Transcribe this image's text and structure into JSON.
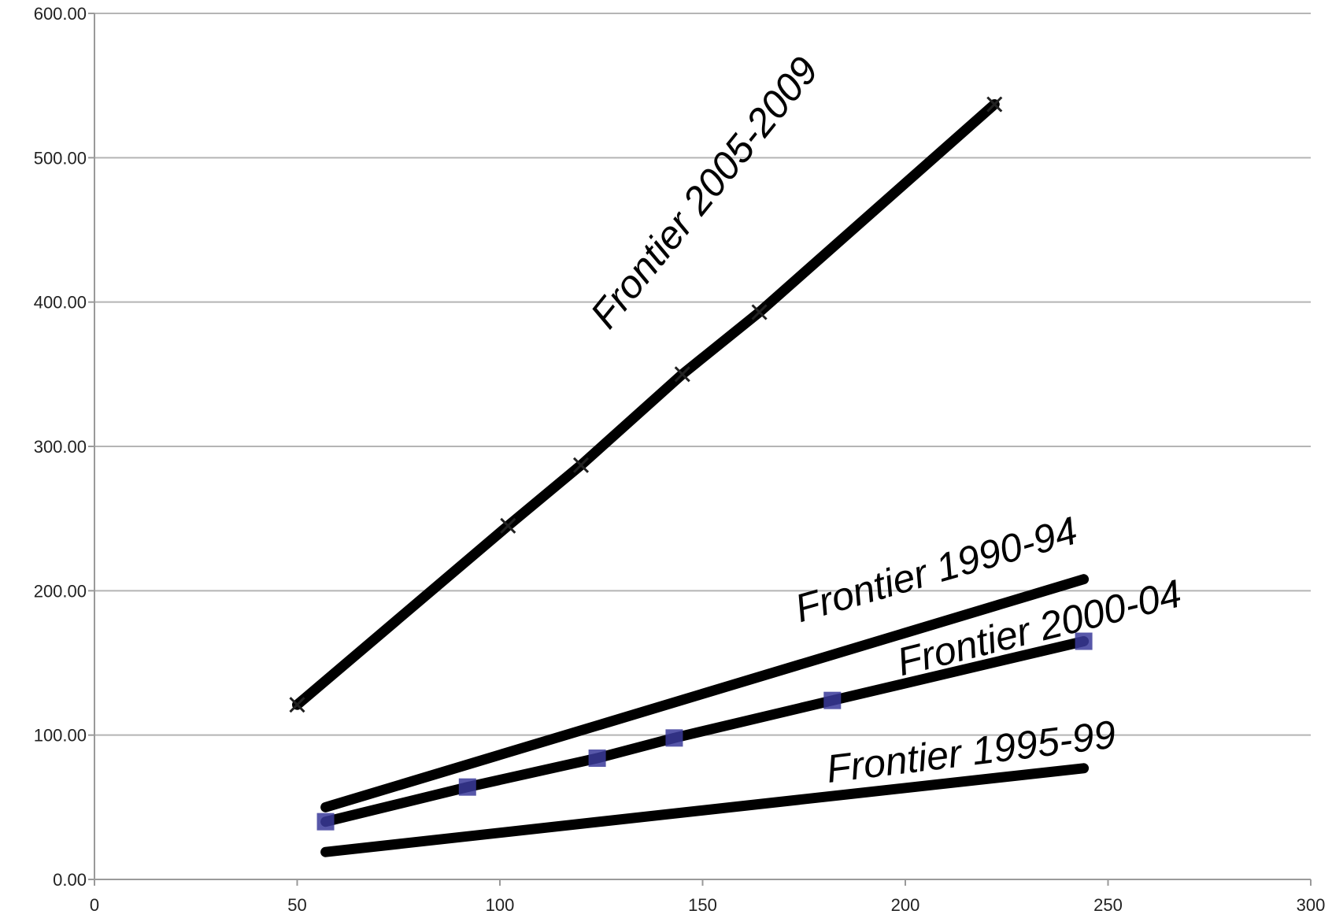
{
  "chart_data": {
    "type": "line",
    "title": "",
    "xlabel": "",
    "ylabel": "",
    "xlim": [
      0,
      300
    ],
    "ylim": [
      0,
      600
    ],
    "x_ticks": [
      0,
      50,
      100,
      150,
      200,
      250,
      300
    ],
    "y_ticks": [
      0,
      100,
      200,
      300,
      400,
      500,
      600
    ],
    "x_tick_labels": [
      "0",
      "50",
      "100",
      "150",
      "200",
      "250",
      "300"
    ],
    "y_tick_labels": [
      "0.00",
      "100.00",
      "200.00",
      "300.00",
      "400.00",
      "500.00",
      "600.00"
    ],
    "grid": "horizontal",
    "colors": {
      "line": "#000000",
      "grid": "#b5b5b5",
      "axis": "#9a9a9a",
      "marker_square": "#3a3a9a"
    },
    "series": [
      {
        "name": "Frontier 2005-2009",
        "marker": "x",
        "points": [
          [
            50,
            121
          ],
          [
            102,
            245
          ],
          [
            120,
            287
          ],
          [
            145,
            350
          ],
          [
            164,
            393
          ],
          [
            222,
            537
          ]
        ]
      },
      {
        "name": "Frontier 1990-94",
        "marker": "none",
        "points": [
          [
            57,
            50
          ],
          [
            244,
            208
          ]
        ]
      },
      {
        "name": "Frontier 2000-04",
        "marker": "square",
        "points": [
          [
            57,
            40
          ],
          [
            92,
            64
          ],
          [
            124,
            84
          ],
          [
            143,
            98
          ],
          [
            182,
            124
          ],
          [
            244,
            165
          ]
        ]
      },
      {
        "name": "Frontier 1995-99",
        "marker": "none",
        "points": [
          [
            57,
            19
          ],
          [
            244,
            77
          ]
        ]
      }
    ],
    "annotations": [
      {
        "series": "Frontier 2005-2009",
        "text": "Frontier 2005-2009",
        "x": 127,
        "y": 380,
        "angle_deg": -51
      },
      {
        "series": "Frontier 1990-94",
        "text": "Frontier 1990-94",
        "x": 174,
        "y": 178,
        "angle_deg": -16
      },
      {
        "series": "Frontier 2000-04",
        "text": "Frontier 2000-04",
        "x": 199,
        "y": 141,
        "angle_deg": -14
      },
      {
        "series": "Frontier 1995-99",
        "text": "Frontier 1995-99",
        "x": 181,
        "y": 67,
        "angle_deg": -7
      }
    ]
  }
}
